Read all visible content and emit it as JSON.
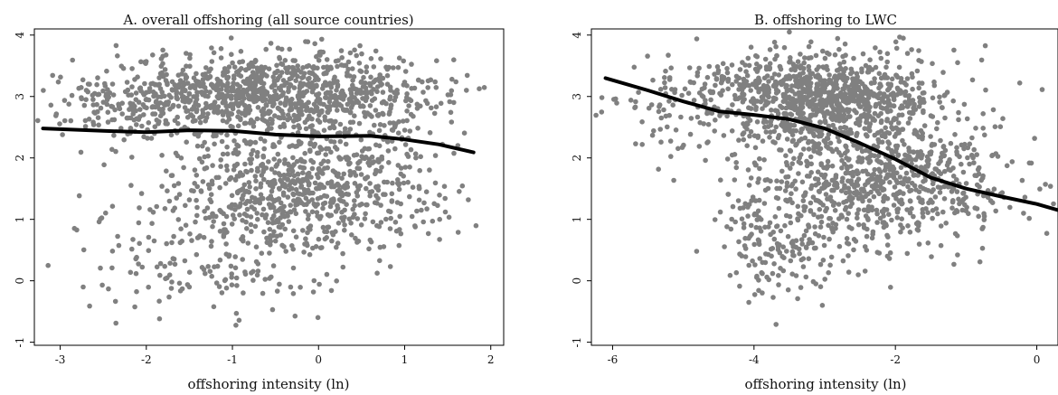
{
  "colors": {
    "points": "#808080",
    "fit_line": "#000000",
    "background": "#ffffff"
  },
  "chart_data": [
    {
      "type": "scatter",
      "title": "A. overall offshoring (all source countries)",
      "xlabel": "offshoring intensity (ln)",
      "ylabel": "",
      "xlim": [
        -3.3,
        2.15
      ],
      "ylim": [
        -1.05,
        4.1
      ],
      "xticks": [
        -3,
        -2,
        -1,
        0,
        1,
        2
      ],
      "yticks": [
        -1,
        0,
        1,
        2,
        3,
        4
      ],
      "xtick_labels": [
        "-3",
        "-2",
        "-1",
        "0",
        "1",
        "2"
      ],
      "ytick_labels": [
        "-1",
        "0",
        "1",
        "2",
        "3",
        "4"
      ],
      "grid": false,
      "legend": "none",
      "scatter_clusters": [
        {
          "x_center": -0.5,
          "y_center": 3.05,
          "x_spread": 0.95,
          "y_spread": 0.33,
          "n": 1000
        },
        {
          "x_center": -0.2,
          "y_center": 1.55,
          "x_spread": 0.75,
          "y_spread": 0.5,
          "n": 650
        },
        {
          "x_center": -1.3,
          "y_center": 0.45,
          "x_spread": 0.8,
          "y_spread": 0.55,
          "n": 200
        },
        {
          "x_center": -2.2,
          "y_center": 2.85,
          "x_spread": 0.5,
          "y_spread": 0.3,
          "n": 120
        },
        {
          "x_center": 0.9,
          "y_center": 1.8,
          "x_spread": 0.4,
          "y_spread": 0.6,
          "n": 80
        }
      ],
      "fit_line": {
        "x": [
          -3.2,
          -2.5,
          -2.0,
          -1.5,
          -1.0,
          -0.5,
          0.0,
          0.6,
          1.0,
          1.4,
          1.8
        ],
        "y": [
          2.48,
          2.44,
          2.42,
          2.45,
          2.44,
          2.38,
          2.35,
          2.36,
          2.3,
          2.22,
          2.09
        ]
      }
    },
    {
      "type": "scatter",
      "title": "B. offshoring to LWC",
      "xlabel": "offshoring intensity (ln)",
      "ylabel": "",
      "xlim": [
        -6.3,
        0.3
      ],
      "ylim": [
        -1.05,
        4.1
      ],
      "xticks": [
        -6,
        -4,
        -2,
        0
      ],
      "yticks": [
        -1,
        0,
        1,
        2,
        3,
        4
      ],
      "xtick_labels": [
        "-6",
        "-4",
        "-2",
        "0"
      ],
      "ytick_labels": [
        "-1",
        "0",
        "1",
        "2",
        "3",
        "4"
      ],
      "grid": false,
      "legend": "none",
      "scatter_clusters": [
        {
          "x_center": -3.1,
          "y_center": 3.0,
          "x_spread": 0.85,
          "y_spread": 0.38,
          "n": 950
        },
        {
          "x_center": -2.4,
          "y_center": 1.6,
          "x_spread": 0.8,
          "y_spread": 0.55,
          "n": 700
        },
        {
          "x_center": -3.7,
          "y_center": 0.6,
          "x_spread": 0.45,
          "y_spread": 0.5,
          "n": 150
        },
        {
          "x_center": -5.3,
          "y_center": 2.8,
          "x_spread": 0.5,
          "y_spread": 0.4,
          "n": 60
        },
        {
          "x_center": -1.0,
          "y_center": 1.7,
          "x_spread": 0.5,
          "y_spread": 0.5,
          "n": 100
        }
      ],
      "fit_line": {
        "x": [
          -6.1,
          -5.5,
          -5.0,
          -4.5,
          -4.0,
          -3.5,
          -3.0,
          -2.5,
          -2.0,
          -1.5,
          -1.0,
          -0.5,
          0.0,
          0.3
        ],
        "y": [
          3.3,
          3.1,
          2.92,
          2.76,
          2.7,
          2.63,
          2.48,
          2.24,
          1.98,
          1.68,
          1.5,
          1.37,
          1.25,
          1.15
        ]
      }
    }
  ]
}
